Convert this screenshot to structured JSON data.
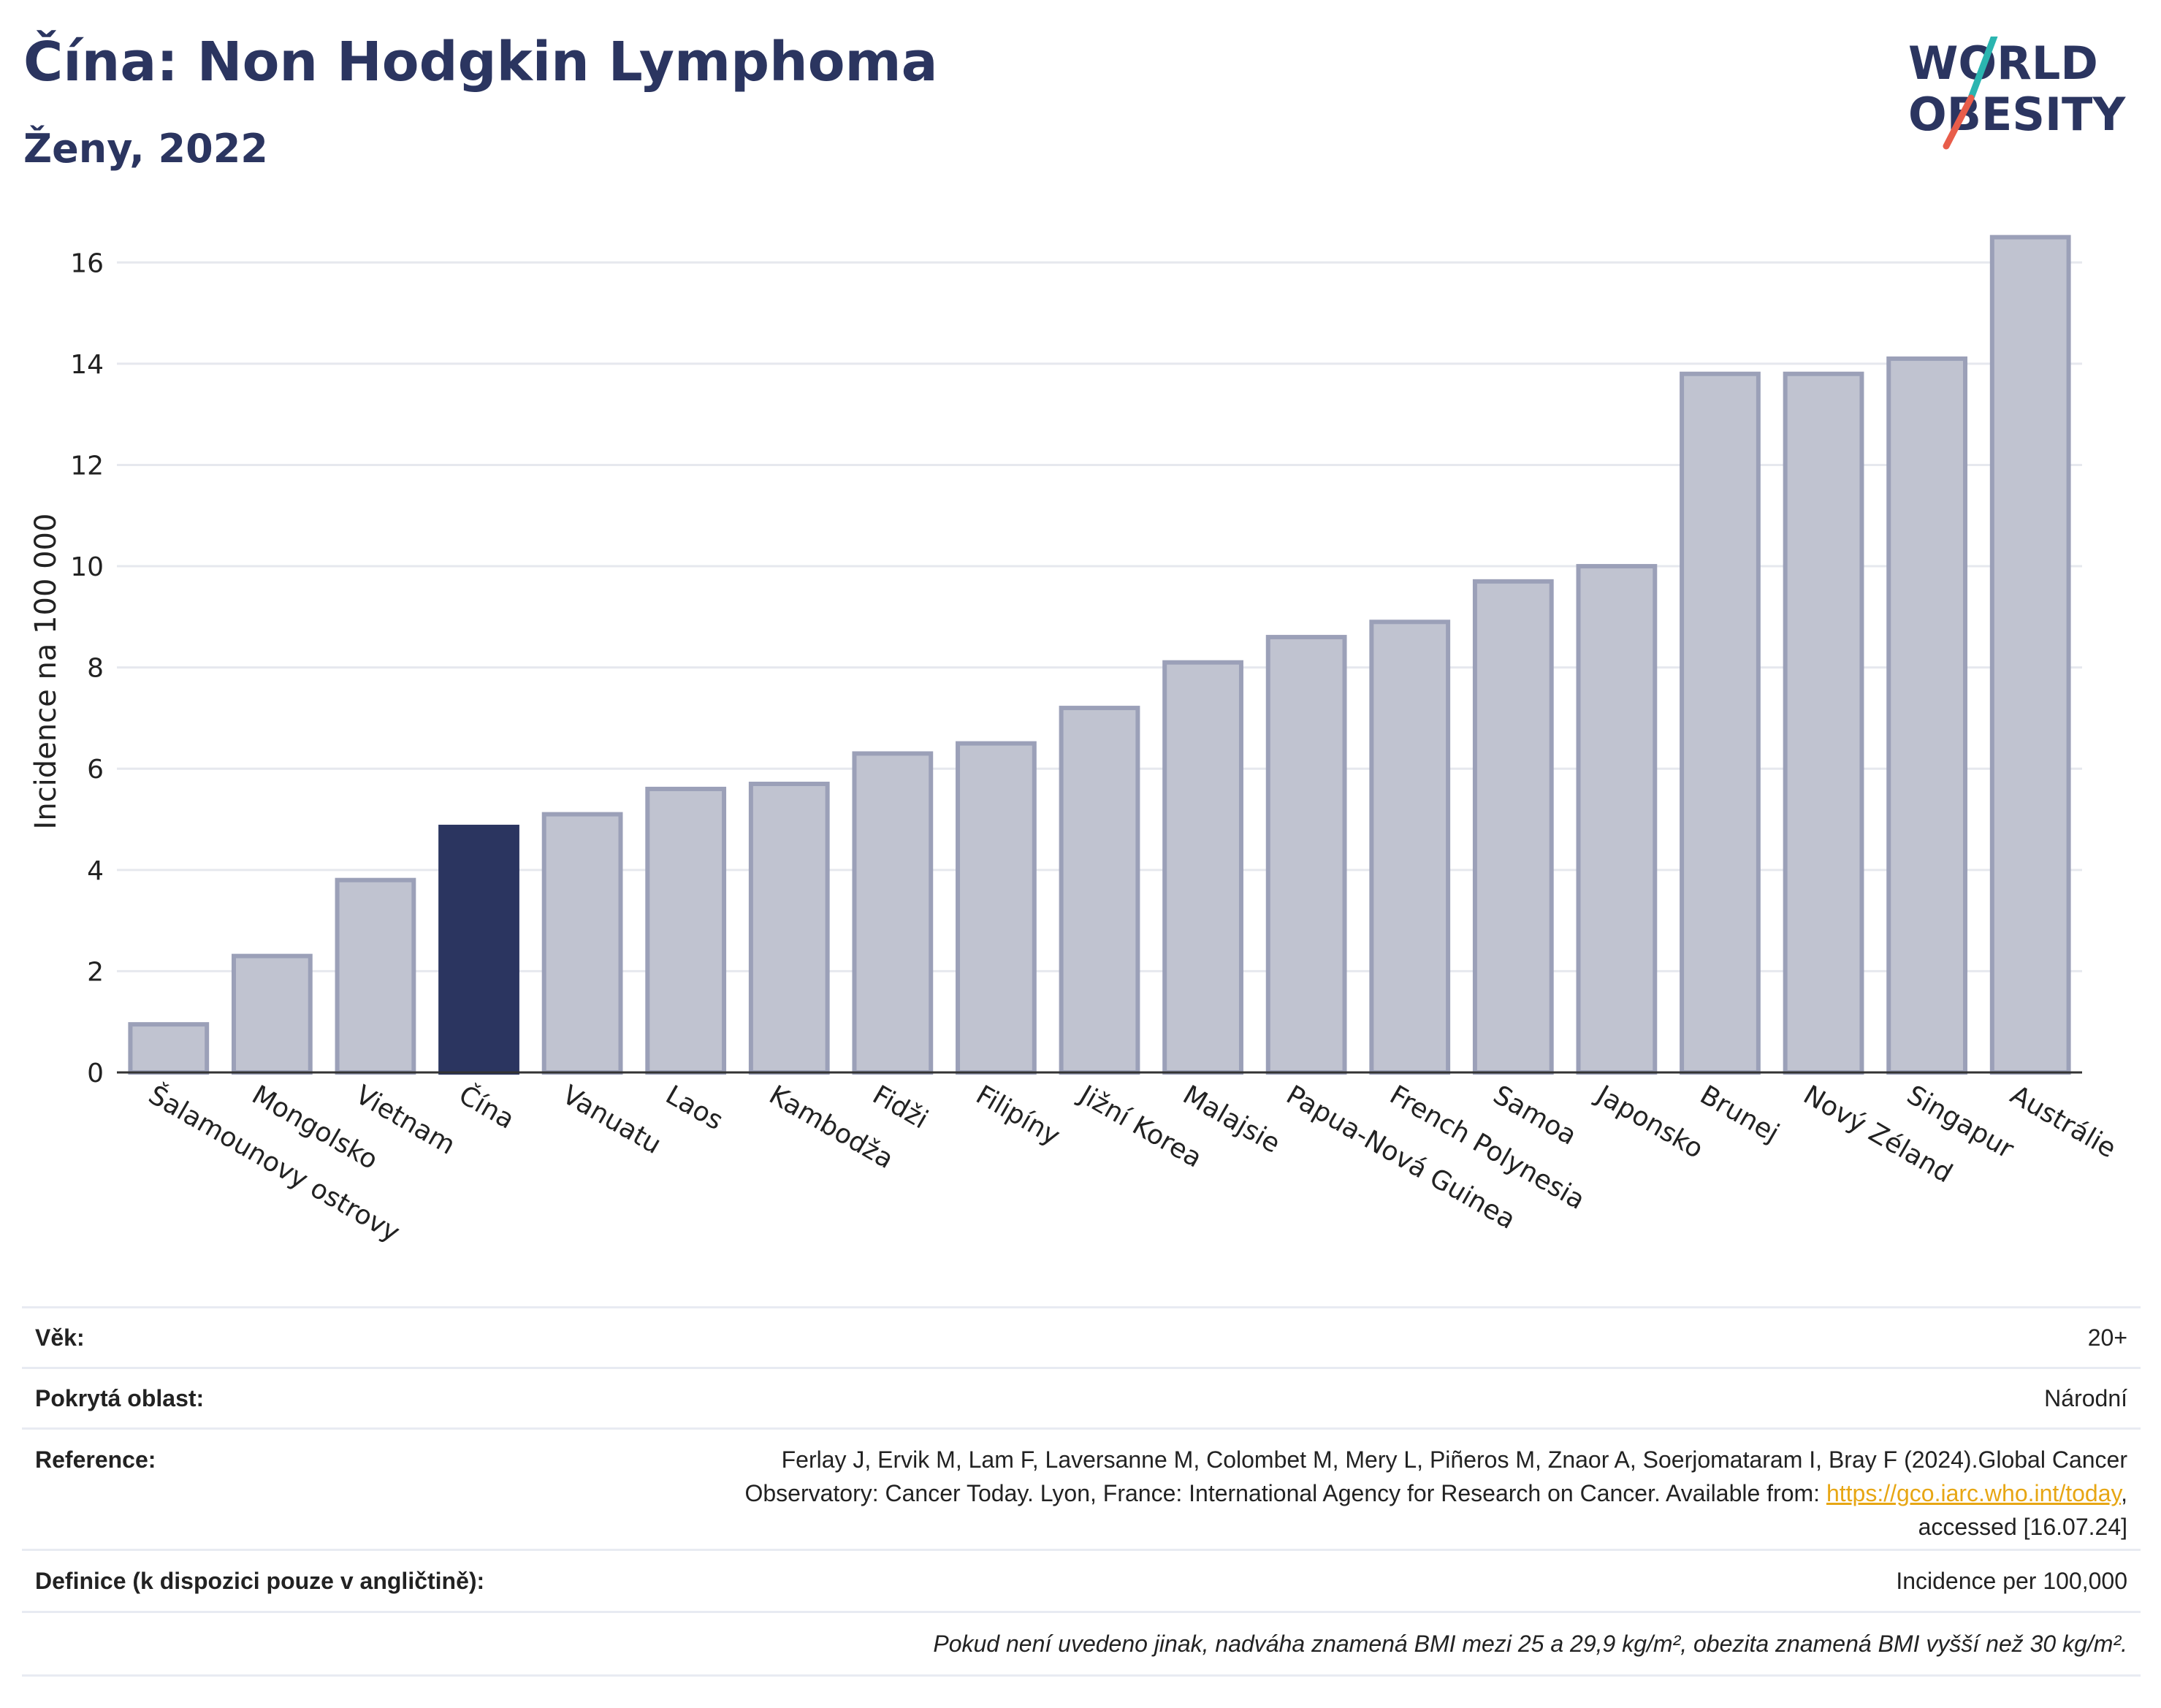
{
  "header": {
    "title": "Čína: Non Hodgkin Lymphoma",
    "subtitle": "Ženy, 2022",
    "logo_line1": "WORLD",
    "logo_line2": "OBESITY"
  },
  "colors": {
    "bar": "#c0c3d0",
    "bar_stroke": "#9ba0b8",
    "highlight": "#2b3560",
    "grid": "#e6e8ee",
    "axis": "#333333",
    "logo_text": "#2b3560",
    "logo_slash_top": "#2bb5b0",
    "logo_slash_bottom": "#e85d4a",
    "link": "#e7a614"
  },
  "chart_data": {
    "type": "bar",
    "ylabel": "Incidence na 100 000",
    "ylim": [
      0,
      17
    ],
    "yticks": [
      0,
      2,
      4,
      6,
      8,
      10,
      12,
      14,
      16
    ],
    "grid": true,
    "highlight_category": "Čína",
    "categories": [
      "Šalamounovy ostrovy",
      "Mongolsko",
      "Vietnam",
      "Čína",
      "Vanuatu",
      "Laos",
      "Kambodža",
      "Fidži",
      "Filipíny",
      "Jižní Korea",
      "Malajsie",
      "Papua-Nová Guinea",
      "French Polynesia",
      "Samoa",
      "Japonsko",
      "Brunej",
      "Nový Zéland",
      "Singapur",
      "Austrálie"
    ],
    "values": [
      0.95,
      2.3,
      3.8,
      4.85,
      5.1,
      5.6,
      5.7,
      6.3,
      6.5,
      7.2,
      8.1,
      8.6,
      8.9,
      9.7,
      10.0,
      13.8,
      13.8,
      14.1,
      16.5
    ]
  },
  "info": {
    "age_label": "Věk:",
    "age_value": "20+",
    "area_label": "Pokrytá oblast:",
    "area_value": "Národní",
    "reference_label": "Reference:",
    "reference_line1": "Ferlay J, Ervik M, Lam F, Laversanne M, Colombet M, Mery L, Piñeros M, Znaor A, Soerjomataram I, Bray F (2024).Global Cancer",
    "reference_line2_pre": "Observatory: Cancer Today. Lyon, France: International Agency for Research on Cancer. Available from: ",
    "reference_link": "https://gco.iarc.who.int/today",
    "reference_line2_post": ",",
    "reference_line3": "accessed [16.07.24]",
    "definition_label": "Definice (k dispozici pouze v angličtině):",
    "definition_value": "Incidence per 100,000",
    "note": "Pokud není uvedeno jinak, nadváha znamená BMI mezi 25 a 29,9 kg/m², obezita znamená BMI vyšší než 30 kg/m²."
  }
}
